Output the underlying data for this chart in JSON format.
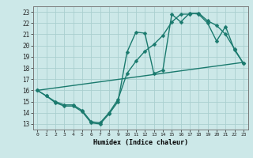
{
  "xlabel": "Humidex (Indice chaleur)",
  "xlim": [
    -0.5,
    23.5
  ],
  "ylim": [
    12.5,
    23.5
  ],
  "xticks": [
    0,
    1,
    2,
    3,
    4,
    5,
    6,
    7,
    8,
    9,
    10,
    11,
    12,
    13,
    14,
    15,
    16,
    17,
    18,
    19,
    20,
    21,
    22,
    23
  ],
  "yticks": [
    13,
    14,
    15,
    16,
    17,
    18,
    19,
    20,
    21,
    22,
    23
  ],
  "background_color": "#cce8e8",
  "grid_color": "#aacfcf",
  "line_color": "#1a7a6e",
  "line1_x": [
    0,
    1,
    2,
    3,
    4,
    5,
    6,
    7,
    8,
    9,
    10,
    11,
    12,
    13,
    14,
    15,
    16,
    17,
    18,
    19,
    20,
    21,
    22,
    23
  ],
  "line1_y": [
    16.0,
    15.5,
    14.9,
    14.6,
    14.6,
    14.1,
    13.1,
    13.0,
    13.9,
    15.0,
    19.4,
    21.2,
    21.1,
    17.5,
    17.8,
    22.8,
    22.1,
    22.9,
    22.8,
    22.0,
    20.4,
    21.7,
    19.6,
    18.4
  ],
  "line2_x": [
    0,
    1,
    2,
    3,
    4,
    5,
    6,
    7,
    8,
    9,
    10,
    11,
    12,
    13,
    14,
    15,
    16,
    17,
    18,
    19,
    20,
    21,
    22,
    23
  ],
  "line2_y": [
    16.0,
    15.5,
    15.0,
    14.7,
    14.7,
    14.2,
    13.2,
    13.1,
    14.0,
    15.2,
    17.5,
    18.6,
    19.5,
    20.1,
    20.9,
    22.1,
    22.8,
    22.8,
    22.9,
    22.2,
    21.8,
    21.0,
    19.7,
    18.4
  ],
  "line3_x": [
    0,
    23
  ],
  "line3_y": [
    16.0,
    18.5
  ],
  "markersize": 2.5,
  "linewidth": 1.0
}
